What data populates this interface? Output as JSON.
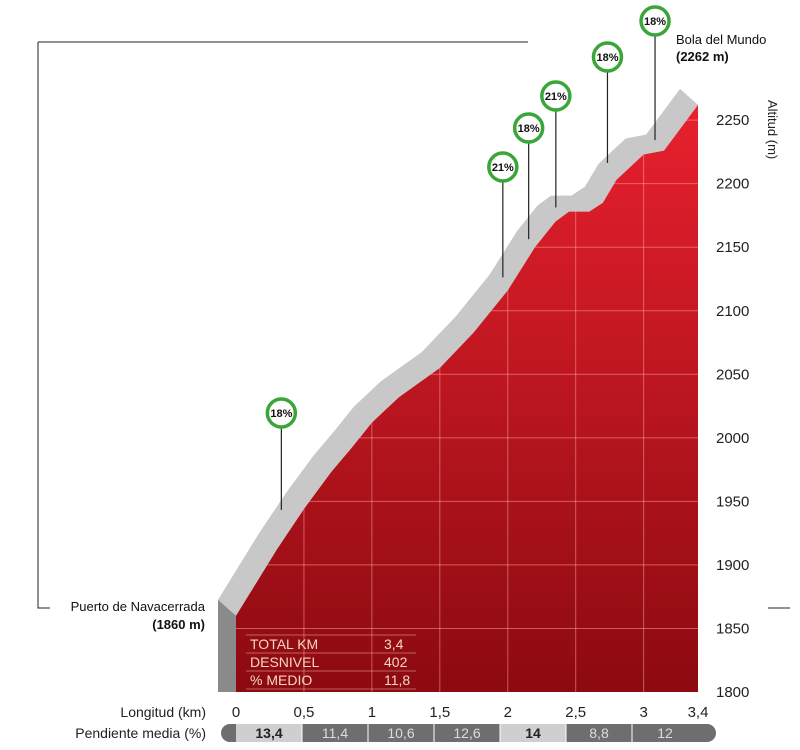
{
  "chart_data": {
    "type": "area",
    "xlabel": "Longitud (km)",
    "ylabel": "Altitud (m)",
    "xlim": [
      0,
      3.4
    ],
    "ylim": [
      1800,
      2280
    ],
    "x_ticks": [
      0,
      0.5,
      1,
      1.5,
      2,
      2.5,
      3,
      3.4
    ],
    "x_tick_labels": [
      "0",
      "0,5",
      "1",
      "1,5",
      "2",
      "2,5",
      "3",
      "3,4"
    ],
    "y_ticks": [
      1800,
      1850,
      1900,
      1950,
      2000,
      2050,
      2100,
      2150,
      2200,
      2250
    ],
    "y_tick_labels": [
      "1800",
      "1850",
      "1900",
      "1950",
      "2000",
      "2050",
      "2100",
      "2150",
      "2200",
      "2250"
    ],
    "grid": true,
    "profile": {
      "x": [
        0,
        0.3,
        0.5,
        0.7,
        0.85,
        1.0,
        1.2,
        1.5,
        1.75,
        2.0,
        2.2,
        2.35,
        2.45,
        2.6,
        2.7,
        2.8,
        2.9,
        3.0,
        3.15,
        3.4
      ],
      "y": [
        1860,
        1912,
        1944,
        1973,
        1992,
        2012,
        2032,
        2055,
        2083,
        2116,
        2150,
        2170,
        2178,
        2178,
        2185,
        2203,
        2213,
        2223,
        2226,
        2262
      ]
    },
    "start": {
      "name": "Puerto de Navacerrada",
      "altitude_label": "(1860 m)"
    },
    "end": {
      "name": "Bola del Mundo",
      "altitude_label": "(2262 m)"
    },
    "gradient_badges": [
      {
        "label": "18%",
        "x": 0.4,
        "y": 1937
      },
      {
        "label": "21%",
        "x": 2.03,
        "y": 2120
      },
      {
        "label": "18%",
        "x": 2.22,
        "y": 2150
      },
      {
        "label": "21%",
        "x": 2.42,
        "y": 2175
      },
      {
        "label": "18%",
        "x": 2.8,
        "y": 2210
      },
      {
        "label": "18%",
        "x": 3.15,
        "y": 2228
      }
    ],
    "gradient_row": {
      "label": "Pendiente media (%)",
      "segments": [
        {
          "label": "13,4",
          "highlight": true
        },
        {
          "label": "11,4",
          "highlight": false
        },
        {
          "label": "10,6",
          "highlight": false
        },
        {
          "label": "12,6",
          "highlight": false
        },
        {
          "label": "14",
          "highlight": true
        },
        {
          "label": "8,8",
          "highlight": false
        },
        {
          "label": "12",
          "highlight": false
        }
      ]
    },
    "stats": [
      {
        "label": "TOTAL KM",
        "value": "3,4"
      },
      {
        "label": "DESNIVEL",
        "value": "402"
      },
      {
        "label": "% MEDIO",
        "value": "11,8"
      }
    ],
    "colors": {
      "fill_top": "#e8212e",
      "fill_bottom": "#8c0a10",
      "road_top": "#c8c8c8",
      "road_side": "#8a8a8a",
      "badge_ring": "#3aa63a",
      "highlight_segment": "#cfcfcf",
      "dark_segment": "#6e6e6e"
    }
  }
}
